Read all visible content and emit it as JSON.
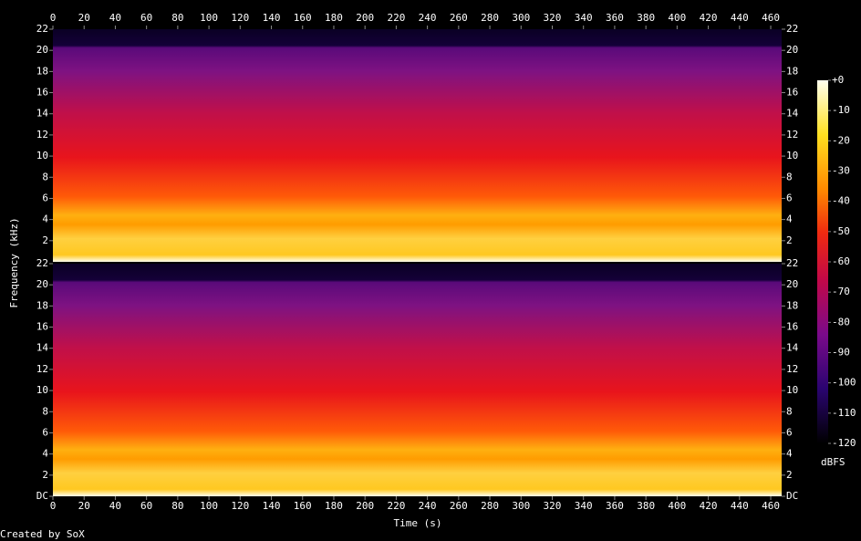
{
  "chart_data": {
    "type": "spectrogram",
    "xlabel": "Time (s)",
    "ylabel": "Frequency (kHz)",
    "footer": "Created by SoX",
    "xlim": [
      0,
      467
    ],
    "xticks": [
      0,
      20,
      40,
      60,
      80,
      100,
      120,
      140,
      160,
      180,
      200,
      220,
      240,
      260,
      280,
      300,
      320,
      340,
      360,
      380,
      400,
      420,
      440,
      460
    ],
    "channels": [
      {
        "ylim": [
          0,
          22
        ],
        "yticks": [
          2,
          4,
          6,
          8,
          10,
          12,
          14,
          16,
          18,
          20,
          22
        ]
      },
      {
        "ylim": [
          0,
          22
        ],
        "yticks": [
          {
            "value": 0,
            "label": "DC"
          },
          2,
          4,
          6,
          8,
          10,
          12,
          14,
          16,
          18,
          20,
          22
        ]
      }
    ],
    "colorbar": {
      "label": "dBFS",
      "lim": [
        -120,
        0
      ],
      "ticks": [
        {
          "value": 0,
          "label": "+0"
        },
        -10,
        -20,
        -30,
        -40,
        -50,
        -60,
        -70,
        -80,
        -90,
        -100,
        -110,
        -120
      ]
    }
  }
}
